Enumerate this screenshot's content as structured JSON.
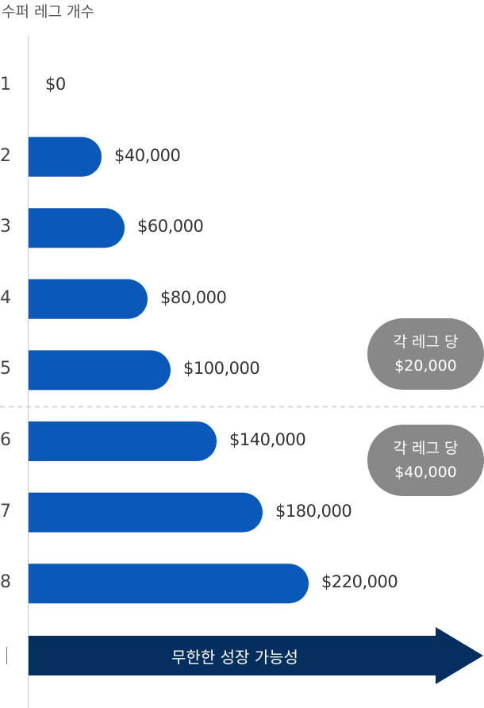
{
  "chart_data": {
    "type": "bar",
    "orientation": "horizontal",
    "xlabel": "",
    "ylabel": "수퍼 레그 개수",
    "categories": [
      "1",
      "2",
      "3",
      "4",
      "5",
      "6",
      "7",
      "8"
    ],
    "values": [
      0,
      40000,
      60000,
      80000,
      100000,
      140000,
      180000,
      220000
    ],
    "value_labels": [
      "$0",
      "$40,000",
      "$60,000",
      "$80,000",
      "$100,000",
      "$140,000",
      "$180,000",
      "$220,000"
    ],
    "bar_color": "#0a59b8",
    "grid": false,
    "annotations": [
      {
        "line1": "각 레그 당",
        "line2": "$20,000"
      },
      {
        "line1": "각 레그 당",
        "line2": "$40,000"
      }
    ],
    "arrow": {
      "label": "무한한 성장 가능성",
      "color": "#032e5e"
    },
    "divider_color": "#cccccc",
    "badge_color": "#888888"
  }
}
